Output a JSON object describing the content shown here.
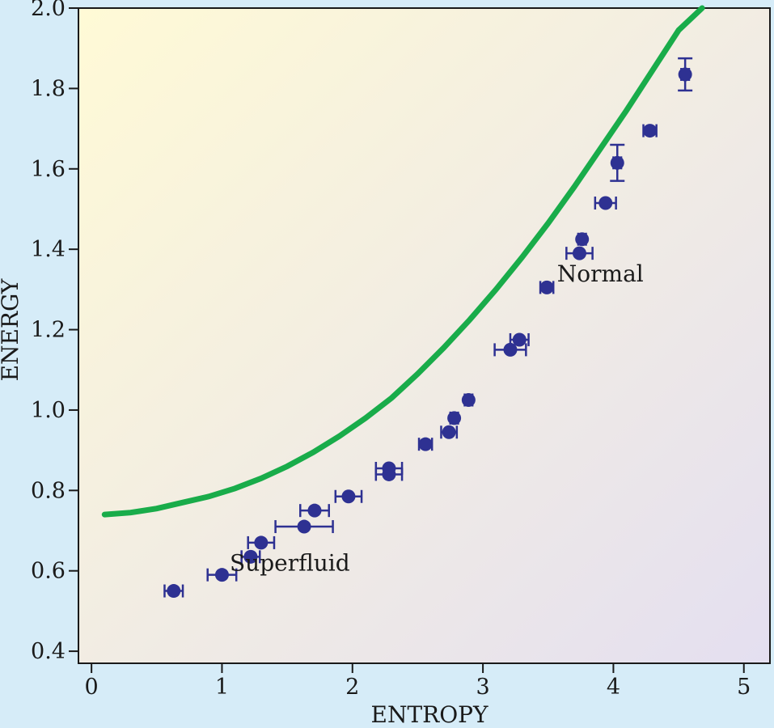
{
  "chart_data": {
    "type": "scatter",
    "title": "",
    "xlabel": "ENTROPY",
    "ylabel": "ENERGY",
    "xlim": [
      -0.1,
      5.2
    ],
    "ylim": [
      0.37,
      2.0
    ],
    "x_ticks": [
      0,
      1,
      2,
      3,
      4,
      5
    ],
    "x_tick_labels": [
      "0",
      "1",
      "2",
      "3",
      "4",
      "5"
    ],
    "y_ticks": [
      0.4,
      0.6,
      0.8,
      1.0,
      1.2,
      1.4,
      1.6,
      1.8,
      2.0
    ],
    "y_tick_labels": [
      "0.4",
      "0.6",
      "0.8",
      "1.0",
      "1.2",
      "1.4",
      "1.6",
      "1.8",
      "2.0"
    ],
    "grid": false,
    "colors": {
      "points": "#2e3192",
      "curve": "#19ac4a",
      "background_top_left": "#fffad6",
      "background_bottom_right": "#e4dff0",
      "page_background": "#d6ecf8"
    },
    "annotations": [
      {
        "text": "Normal",
        "x": 3.9,
        "y": 1.32
      },
      {
        "text": "Superfluid",
        "x": 1.52,
        "y": 0.6
      }
    ],
    "curve": {
      "x": [
        0.1,
        0.3,
        0.5,
        0.7,
        0.9,
        1.1,
        1.3,
        1.5,
        1.7,
        1.9,
        2.1,
        2.3,
        2.5,
        2.7,
        2.9,
        3.1,
        3.3,
        3.5,
        3.7,
        3.9,
        4.1,
        4.3,
        4.5,
        4.68
      ],
      "y": [
        0.74,
        0.745,
        0.755,
        0.77,
        0.785,
        0.805,
        0.83,
        0.86,
        0.895,
        0.935,
        0.98,
        1.03,
        1.09,
        1.155,
        1.225,
        1.3,
        1.38,
        1.465,
        1.555,
        1.65,
        1.745,
        1.845,
        1.945,
        2.0
      ]
    },
    "series": [
      {
        "points": [
          {
            "x": 0.63,
            "y": 0.55,
            "xerr": 0.07,
            "yerr": 0
          },
          {
            "x": 1.0,
            "y": 0.59,
            "xerr": 0.11,
            "yerr": 0
          },
          {
            "x": 1.22,
            "y": 0.635,
            "xerr": 0.07,
            "yerr": 0
          },
          {
            "x": 1.3,
            "y": 0.67,
            "xerr": 0.1,
            "yerr": 0
          },
          {
            "x": 1.63,
            "y": 0.71,
            "xerr": 0.22,
            "yerr": 0
          },
          {
            "x": 1.71,
            "y": 0.75,
            "xerr": 0.11,
            "yerr": 0
          },
          {
            "x": 1.97,
            "y": 0.785,
            "xerr": 0.1,
            "yerr": 0
          },
          {
            "x": 2.28,
            "y": 0.84,
            "xerr": 0.1,
            "yerr": 0
          },
          {
            "x": 2.28,
            "y": 0.855,
            "xerr": 0.1,
            "yerr": 0
          },
          {
            "x": 2.56,
            "y": 0.915,
            "xerr": 0.05,
            "yerr": 0
          },
          {
            "x": 2.74,
            "y": 0.945,
            "xerr": 0.06,
            "yerr": 0
          },
          {
            "x": 2.78,
            "y": 0.98,
            "xerr": 0.03,
            "yerr": 0
          },
          {
            "x": 2.89,
            "y": 1.025,
            "xerr": 0.03,
            "yerr": 0
          },
          {
            "x": 3.21,
            "y": 1.15,
            "xerr": 0.12,
            "yerr": 0
          },
          {
            "x": 3.28,
            "y": 1.175,
            "xerr": 0.07,
            "yerr": 0
          },
          {
            "x": 3.49,
            "y": 1.305,
            "xerr": 0.05,
            "yerr": 0
          },
          {
            "x": 3.74,
            "y": 1.39,
            "xerr": 0.1,
            "yerr": 0
          },
          {
            "x": 3.76,
            "y": 1.425,
            "xerr": 0.03,
            "yerr": 0
          },
          {
            "x": 3.94,
            "y": 1.515,
            "xerr": 0.08,
            "yerr": 0
          },
          {
            "x": 4.03,
            "y": 1.615,
            "xerr": 0.03,
            "yerr": 0.045
          },
          {
            "x": 4.28,
            "y": 1.695,
            "xerr": 0.05,
            "yerr": 0
          },
          {
            "x": 4.55,
            "y": 1.835,
            "xerr": 0.03,
            "yerr": 0.04
          }
        ]
      }
    ]
  }
}
